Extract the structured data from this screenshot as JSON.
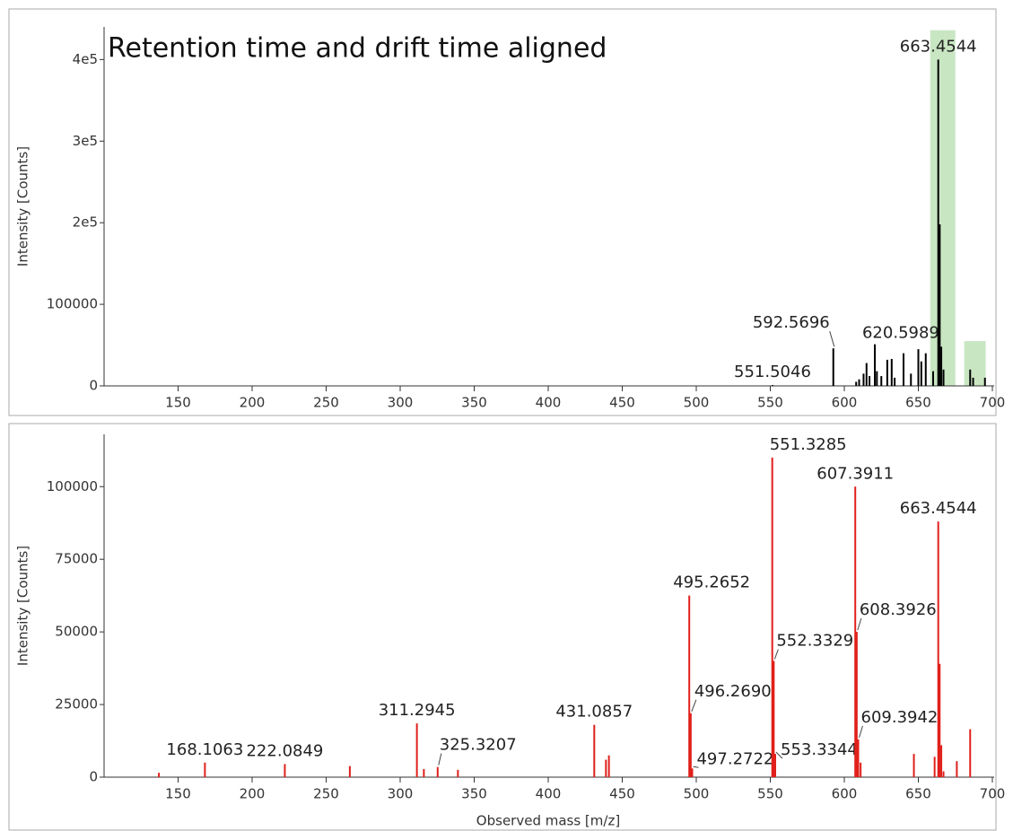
{
  "chart_data": [
    {
      "type": "spectrum",
      "title": "Retention time and drift time aligned",
      "y_label": "Intensity [Counts]",
      "x": [
        551.5046,
        592.5696,
        608,
        610,
        613,
        615,
        617,
        620.5989,
        622,
        625,
        629,
        632,
        634,
        640,
        645,
        650,
        652,
        655,
        660,
        663.4544,
        664.45,
        665.5,
        667,
        685,
        687,
        695
      ],
      "values": [
        1000,
        46000,
        5000,
        8000,
        15000,
        28000,
        12000,
        51000,
        18000,
        12000,
        32000,
        33000,
        10000,
        40000,
        15000,
        45000,
        30000,
        40000,
        18000,
        400000,
        198000,
        48000,
        20000,
        20000,
        10000,
        10000
      ],
      "peak_labels": [
        "551.5046",
        "592.5696",
        null,
        null,
        null,
        null,
        null,
        "620.5989",
        null,
        null,
        null,
        null,
        null,
        null,
        null,
        null,
        null,
        null,
        null,
        "663.4544",
        null,
        null,
        null,
        null,
        null,
        null
      ],
      "color": "#000000",
      "xlim": [
        100,
        700
      ],
      "xticks": [
        150,
        200,
        250,
        300,
        350,
        400,
        450,
        500,
        550,
        600,
        650,
        700
      ],
      "ylim": [
        0,
        440000
      ],
      "yticks": [
        0,
        100000,
        {
          "value": 200000,
          "label": "2e5"
        },
        {
          "value": 300000,
          "label": "3e5"
        },
        {
          "value": 400000,
          "label": "4e5"
        }
      ],
      "highlights": [
        {
          "x": [
            658,
            675
          ],
          "y": [
            0,
            436000
          ]
        },
        {
          "x": [
            681,
            695.5
          ],
          "y": [
            0,
            55000
          ]
        }
      ],
      "highlight_color": "#c9e6c3"
    },
    {
      "type": "spectrum",
      "y_label": "Intensity [Counts]",
      "x_label": "Observed mass [m/z]",
      "x": [
        137,
        168.1063,
        222.0849,
        266,
        311.2945,
        316,
        325.3207,
        339,
        431.0857,
        439,
        441,
        495.2652,
        496.269,
        497.2722,
        551.3285,
        552.3329,
        553.3344,
        607.3911,
        608.3926,
        609.3942,
        611,
        647,
        661,
        663.4544,
        664.4,
        665.5,
        667,
        676,
        685
      ],
      "values": [
        1500,
        5000,
        4500,
        3800,
        18500,
        2800,
        3500,
        2500,
        18000,
        6000,
        7500,
        62500,
        22000,
        3000,
        110000,
        40000,
        8000,
        100000,
        50000,
        13000,
        5000,
        8000,
        7000,
        88000,
        39000,
        11000,
        2000,
        5500,
        16500
      ],
      "peak_labels": [
        null,
        "168.1063",
        "222.0849",
        null,
        "311.2945",
        null,
        "325.3207",
        null,
        "431.0857",
        null,
        null,
        "495.2652",
        "496.2690",
        "497.2722",
        "551.3285",
        "552.3329",
        "553.3344",
        "607.3911",
        "608.3926",
        "609.3942",
        null,
        null,
        null,
        "663.4544",
        null,
        null,
        null,
        null,
        null
      ],
      "color": "#e0201b",
      "xlim": [
        100,
        700
      ],
      "xticks": [
        150,
        200,
        250,
        300,
        350,
        400,
        450,
        500,
        550,
        600,
        650,
        700
      ],
      "ylim": [
        0,
        118000
      ],
      "yticks": [
        0,
        25000,
        50000,
        75000,
        100000
      ]
    }
  ]
}
